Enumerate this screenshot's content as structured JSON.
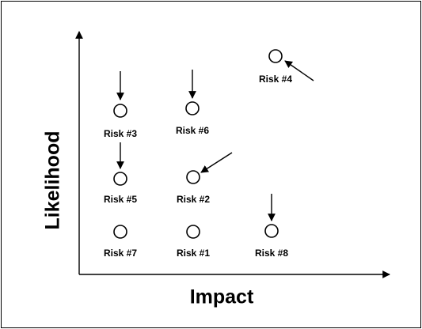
{
  "axes": {
    "y_label": "Likelihood",
    "x_label": "Impact"
  },
  "nodes": [
    {
      "label": "Risk #4"
    },
    {
      "label": "Risk #3"
    },
    {
      "label": "Risk #6"
    },
    {
      "label": "Risk #5"
    },
    {
      "label": "Risk #2"
    },
    {
      "label": "Risk #7"
    },
    {
      "label": "Risk #1"
    },
    {
      "label": "Risk #8"
    }
  ]
}
